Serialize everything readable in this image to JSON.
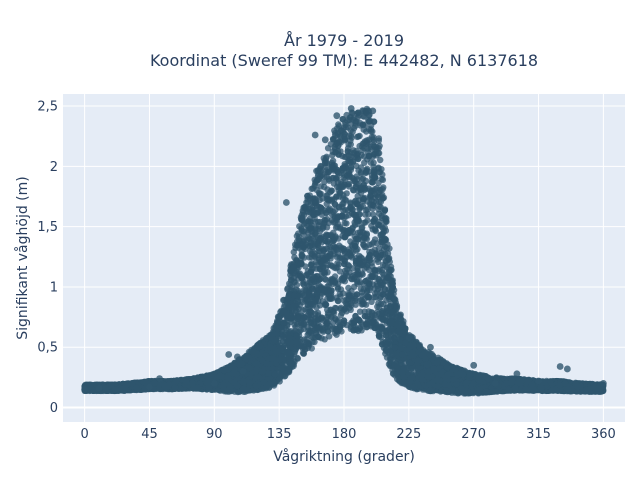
{
  "chart_data": {
    "type": "scatter",
    "title_line1": "År 1979 - 2019",
    "title_line2": "Koordinat (Sweref 99 TM): E 442482, N 6137618",
    "xlabel": "Vågriktning (grader)",
    "ylabel": "Signifikant våghöjd (m)",
    "xlim": [
      -15,
      375
    ],
    "ylim": [
      -0.12,
      2.6
    ],
    "xticks": [
      0,
      45,
      90,
      135,
      180,
      225,
      270,
      315,
      360
    ],
    "xtick_labels": [
      "0",
      "45",
      "90",
      "135",
      "180",
      "225",
      "270",
      "315",
      "360"
    ],
    "yticks": [
      0,
      0.5,
      1,
      1.5,
      2,
      2.5
    ],
    "ytick_labels": [
      "0",
      "0,5",
      "1",
      "1,5",
      "2",
      "2,5"
    ],
    "grid": true,
    "marker_color": "#2f566e",
    "plot_bg": "#e5ecf6",
    "envelope": {
      "direction": [
        0,
        10,
        20,
        30,
        45,
        60,
        75,
        90,
        100,
        110,
        120,
        130,
        135,
        140,
        145,
        150,
        155,
        160,
        165,
        170,
        175,
        180,
        185,
        190,
        195,
        200,
        205,
        210,
        215,
        220,
        225,
        230,
        240,
        250,
        260,
        270,
        280,
        290,
        300,
        315,
        330,
        345,
        360
      ],
      "max_height": [
        0.19,
        0.19,
        0.19,
        0.2,
        0.22,
        0.22,
        0.24,
        0.28,
        0.34,
        0.42,
        0.52,
        0.62,
        0.78,
        0.98,
        1.3,
        1.6,
        1.8,
        1.95,
        2.05,
        2.2,
        2.35,
        2.42,
        2.45,
        2.45,
        2.48,
        2.48,
        2.2,
        1.5,
        0.95,
        0.75,
        0.62,
        0.55,
        0.45,
        0.38,
        0.32,
        0.28,
        0.26,
        0.24,
        0.24,
        0.22,
        0.22,
        0.2,
        0.19
      ],
      "min_height": [
        0.12,
        0.12,
        0.12,
        0.12,
        0.13,
        0.13,
        0.13,
        0.1,
        0.06,
        0.03,
        0.02,
        0.02,
        0.02,
        0.02,
        0.02,
        0.02,
        0.02,
        0.02,
        0.02,
        0.02,
        0.02,
        0.02,
        0.02,
        0.02,
        0.02,
        0.02,
        0.02,
        0.02,
        0.02,
        0.02,
        0.02,
        0.02,
        0.03,
        0.04,
        0.05,
        0.06,
        0.08,
        0.1,
        0.11,
        0.11,
        0.11,
        0.11,
        0.11
      ]
    },
    "points_sample": [
      {
        "x": 0,
        "y": 0.15
      },
      {
        "x": 10,
        "y": 0.16
      },
      {
        "x": 45,
        "y": 0.17
      },
      {
        "x": 52,
        "y": 0.24
      },
      {
        "x": 90,
        "y": 0.2
      },
      {
        "x": 100,
        "y": 0.44
      },
      {
        "x": 106,
        "y": 0.42
      },
      {
        "x": 110,
        "y": 0.3
      },
      {
        "x": 140,
        "y": 1.7
      },
      {
        "x": 160,
        "y": 2.26
      },
      {
        "x": 167,
        "y": 2.22
      },
      {
        "x": 175,
        "y": 2.42
      },
      {
        "x": 185,
        "y": 2.48
      },
      {
        "x": 200,
        "y": 2.46
      },
      {
        "x": 215,
        "y": 0.9
      },
      {
        "x": 225,
        "y": 0.58
      },
      {
        "x": 240,
        "y": 0.5
      },
      {
        "x": 270,
        "y": 0.35
      },
      {
        "x": 285,
        "y": 0.2
      },
      {
        "x": 300,
        "y": 0.28
      },
      {
        "x": 315,
        "y": 0.22
      },
      {
        "x": 330,
        "y": 0.34
      },
      {
        "x": 335,
        "y": 0.32
      },
      {
        "x": 360,
        "y": 0.2
      }
    ]
  }
}
